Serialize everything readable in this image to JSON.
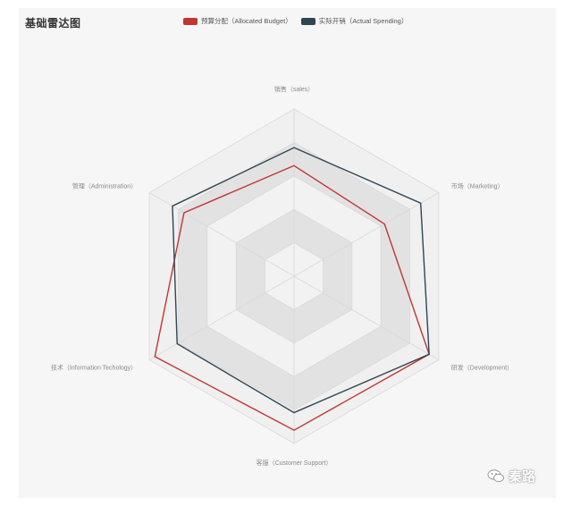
{
  "title": "基础雷达图",
  "watermark": "秦路",
  "colors": {
    "budget": "#c23531",
    "actual": "#2f4554",
    "panel": "#f6f6f6",
    "ring_dark": "#e2e2e2",
    "ring_light": "#f2f2f2",
    "axis": "#d9d9d9"
  },
  "chart_data": {
    "type": "radar",
    "title": "基础雷达图",
    "indicators": [
      {
        "name": "销售（sales）",
        "max": 6500
      },
      {
        "name": "市场（Marketing）",
        "max": 16000
      },
      {
        "name": "研发（Development）",
        "max": 30000
      },
      {
        "name": "客服（Customer Support）",
        "max": 38000
      },
      {
        "name": "技术（Information Techology）",
        "max": 52000
      },
      {
        "name": "管理（Administration）",
        "max": 25000
      }
    ],
    "series": [
      {
        "name": "预算分配（Allocated Budget）",
        "values": [
          4300,
          10000,
          28000,
          35000,
          50000,
          19000
        ]
      },
      {
        "name": "实际开销（Actual Spending）",
        "values": [
          5000,
          14000,
          28000,
          31000,
          42000,
          21000
        ]
      }
    ],
    "split_number": 5,
    "legend_position": "top-center",
    "shape": "polygon"
  }
}
